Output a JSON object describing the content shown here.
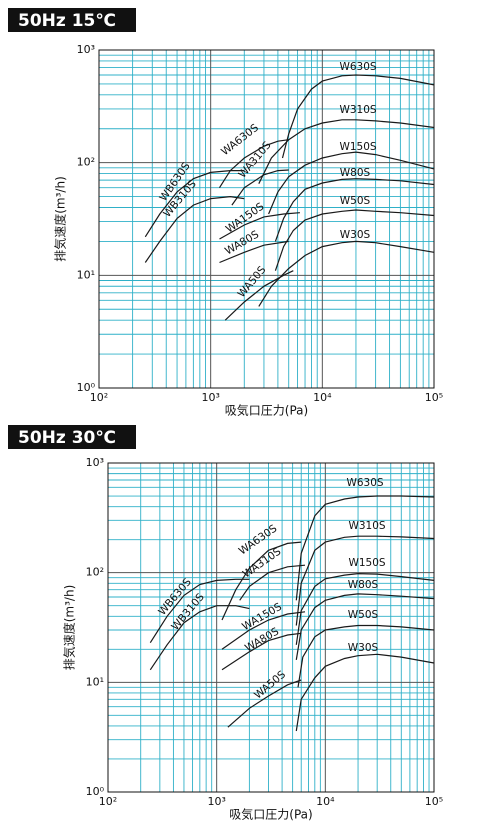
{
  "chart_data": [
    {
      "type": "line",
      "title": "50Hz 15℃",
      "xlabel": "吸気口圧力(Pa)",
      "ylabel": "排気速度(m³/h)",
      "log_x": true,
      "log_y": true,
      "grid": true,
      "color": "#1a1a1a",
      "grid_color": "#2fb0c8",
      "xlim": [
        100,
        100000
      ],
      "ylim": [
        1,
        1000
      ],
      "xticks": [
        {
          "value": 100,
          "label": "10²"
        },
        {
          "value": 1000,
          "label": "10³"
        },
        {
          "value": 10000,
          "label": "10⁴"
        },
        {
          "value": 100000,
          "label": "10⁵"
        }
      ],
      "yticks": [
        {
          "value": 1,
          "label": "10⁰"
        },
        {
          "value": 10,
          "label": "10¹"
        },
        {
          "value": 100,
          "label": "10²"
        },
        {
          "value": 1000,
          "label": "10³"
        }
      ],
      "series": [
        {
          "name": "W630S",
          "x": [
            4400,
            5000,
            6000,
            8000,
            10000,
            15000,
            20000,
            30000,
            50000,
            100000
          ],
          "values": [
            110,
            180,
            300,
            450,
            530,
            590,
            600,
            590,
            560,
            490
          ]
        },
        {
          "name": "W310S",
          "x": [
            2700,
            3500,
            5000,
            7000,
            10000,
            15000,
            20000,
            30000,
            50000,
            100000
          ],
          "values": [
            65,
            110,
            160,
            200,
            225,
            240,
            240,
            235,
            225,
            205
          ]
        },
        {
          "name": "W150S",
          "x": [
            3300,
            4000,
            5000,
            7000,
            10000,
            15000,
            20000,
            30000,
            50000,
            100000
          ],
          "values": [
            35,
            55,
            75,
            95,
            110,
            120,
            124,
            118,
            105,
            88
          ]
        },
        {
          "name": "W80S",
          "x": [
            3800,
            4500,
            5500,
            7000,
            10000,
            15000,
            20000,
            30000,
            50000,
            100000
          ],
          "values": [
            20,
            32,
            45,
            58,
            66,
            71,
            72,
            71,
            69,
            64
          ]
        },
        {
          "name": "W50S",
          "x": [
            3800,
            4500,
            5500,
            7000,
            10000,
            15000,
            20000,
            30000,
            50000,
            100000
          ],
          "values": [
            11,
            18,
            25,
            31,
            35,
            37,
            38,
            37,
            36,
            34
          ]
        },
        {
          "name": "W30S",
          "x": [
            2700,
            3500,
            5000,
            7000,
            10000,
            15000,
            20000,
            30000,
            50000,
            100000
          ],
          "values": [
            5.3,
            8,
            11.5,
            15,
            18,
            19.5,
            20,
            19.5,
            18,
            16
          ]
        },
        {
          "name": "WA630S",
          "x": [
            1200,
            1500,
            2000,
            3000,
            4000,
            5000
          ],
          "values": [
            60,
            85,
            110,
            140,
            155,
            160
          ]
        },
        {
          "name": "WA310S",
          "x": [
            1550,
            2000,
            3000,
            4000,
            5000
          ],
          "values": [
            42,
            60,
            78,
            85,
            86
          ]
        },
        {
          "name": "WA150S",
          "x": [
            1200,
            2000,
            3000,
            4500,
            6300
          ],
          "values": [
            21,
            28,
            33,
            35,
            36
          ]
        },
        {
          "name": "WA80S",
          "x": [
            1200,
            2000,
            3000,
            5000
          ],
          "values": [
            13,
            16,
            18.5,
            20
          ]
        },
        {
          "name": "WA50S",
          "x": [
            1350,
            2000,
            3000,
            4500,
            5500
          ],
          "values": [
            4,
            5.8,
            8,
            10,
            11
          ]
        },
        {
          "name": "WB630S",
          "x": [
            260,
            350,
            500,
            700,
            1000,
            1500,
            2000
          ],
          "values": [
            22,
            35,
            55,
            72,
            82,
            85,
            85
          ]
        },
        {
          "name": "WB310S",
          "x": [
            260,
            350,
            500,
            700,
            1000,
            1500,
            2000
          ],
          "values": [
            13,
            20,
            32,
            42,
            48,
            50,
            48
          ]
        }
      ]
    },
    {
      "type": "line",
      "title": "50Hz 30℃",
      "xlabel": "吸気口圧力(Pa)",
      "ylabel": "排気速度(m³/h)",
      "log_x": true,
      "log_y": true,
      "grid": true,
      "color": "#1a1a1a",
      "grid_color": "#2fb0c8",
      "xlim": [
        100,
        100000
      ],
      "ylim": [
        1,
        1000
      ],
      "xticks": [
        {
          "value": 100,
          "label": "10²"
        },
        {
          "value": 1000,
          "label": "10³"
        },
        {
          "value": 10000,
          "label": "10⁴"
        },
        {
          "value": 100000,
          "label": "10⁵"
        }
      ],
      "yticks": [
        {
          "value": 1,
          "label": "10⁰"
        },
        {
          "value": 10,
          "label": "10¹"
        },
        {
          "value": 100,
          "label": "10²"
        },
        {
          "value": 1000,
          "label": "10³"
        }
      ],
      "series": [
        {
          "name": "W630S",
          "x": [
            5400,
            6000,
            8000,
            10000,
            15000,
            20000,
            30000,
            50000,
            100000
          ],
          "values": [
            56,
            150,
            330,
            420,
            470,
            490,
            500,
            500,
            490
          ]
        },
        {
          "name": "W310S",
          "x": [
            5400,
            6000,
            8000,
            10000,
            15000,
            20000,
            30000,
            50000,
            100000
          ],
          "values": [
            33,
            80,
            160,
            190,
            210,
            215,
            215,
            212,
            205
          ]
        },
        {
          "name": "W150S",
          "x": [
            5400,
            6000,
            8000,
            10000,
            15000,
            20000,
            30000,
            50000,
            100000
          ],
          "values": [
            22,
            45,
            75,
            88,
            95,
            98,
            97,
            92,
            85
          ]
        },
        {
          "name": "W80S",
          "x": [
            5400,
            6000,
            8000,
            10000,
            15000,
            20000,
            30000,
            50000,
            100000
          ],
          "values": [
            16,
            30,
            48,
            56,
            62,
            64,
            63,
            61,
            58
          ]
        },
        {
          "name": "W50S",
          "x": [
            5600,
            6200,
            8000,
            10000,
            15000,
            20000,
            30000,
            50000,
            100000
          ],
          "values": [
            9,
            17,
            26,
            30,
            32,
            33,
            33,
            32,
            30
          ]
        },
        {
          "name": "W30S",
          "x": [
            5400,
            6000,
            8000,
            10000,
            15000,
            20000,
            30000,
            50000,
            100000
          ],
          "values": [
            3.6,
            7,
            11,
            14,
            16.5,
            17.5,
            18,
            17,
            15
          ]
        },
        {
          "name": "WA630S",
          "x": [
            1120,
            1500,
            2000,
            3000,
            4500,
            6000
          ],
          "values": [
            37,
            70,
            110,
            160,
            185,
            190
          ]
        },
        {
          "name": "WA310S",
          "x": [
            1630,
            2000,
            3000,
            4500,
            6500
          ],
          "values": [
            56,
            75,
            100,
            113,
            117
          ]
        },
        {
          "name": "WA150S",
          "x": [
            1120,
            2000,
            3000,
            4500,
            6500
          ],
          "values": [
            20,
            30,
            37,
            42,
            44
          ]
        },
        {
          "name": "WA80S",
          "x": [
            1120,
            2000,
            3000,
            4500,
            6000
          ],
          "values": [
            13,
            19,
            24,
            27,
            28
          ]
        },
        {
          "name": "WA50S",
          "x": [
            1270,
            2000,
            3000,
            4500,
            6000
          ],
          "values": [
            3.9,
            5.8,
            7.5,
            9.5,
            10.5
          ]
        },
        {
          "name": "WB630S",
          "x": [
            245,
            350,
            500,
            700,
            1000,
            1500,
            2000
          ],
          "values": [
            23,
            40,
            62,
            78,
            85,
            87,
            87
          ]
        },
        {
          "name": "WB310S",
          "x": [
            245,
            350,
            500,
            700,
            1000,
            1500,
            2000
          ],
          "values": [
            13,
            22,
            35,
            44,
            50,
            50,
            47
          ]
        }
      ]
    }
  ]
}
